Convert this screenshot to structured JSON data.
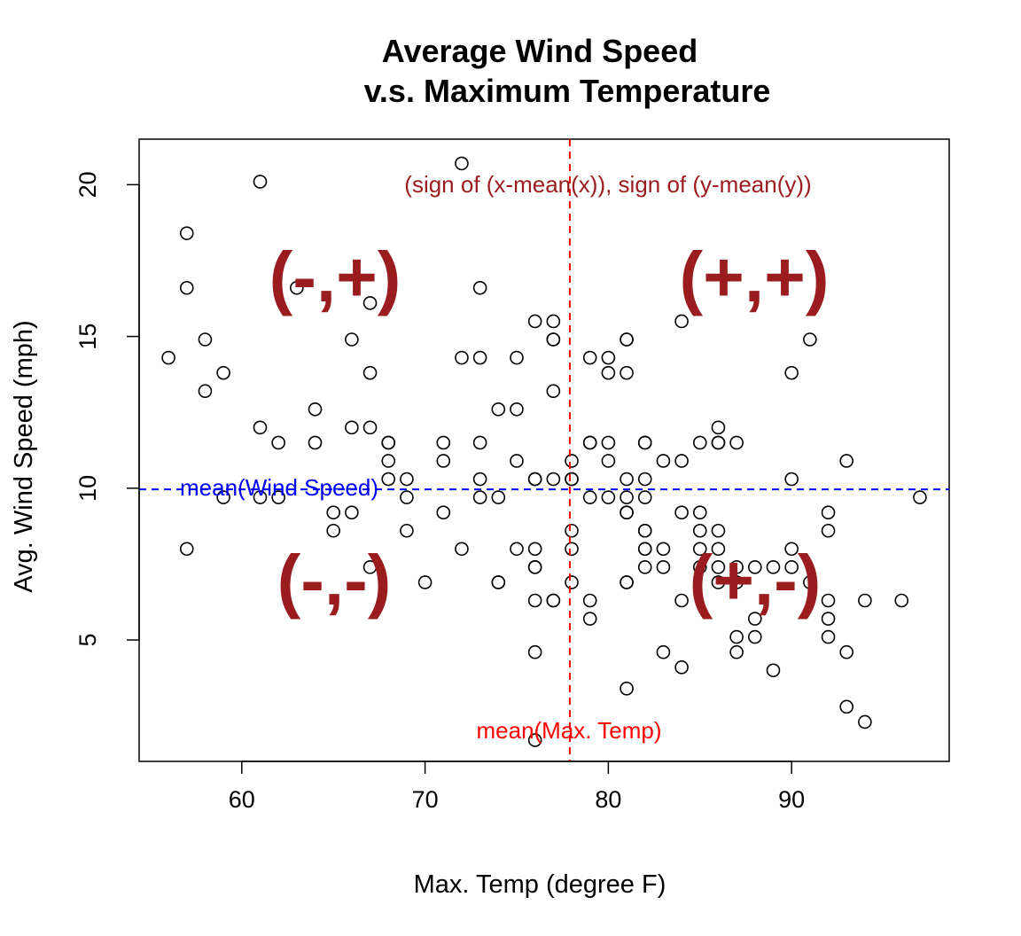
{
  "chart_data": {
    "type": "scatter",
    "title_line1": "Average Wind Speed",
    "title_line2": "v.s. Maximum Temperature",
    "xlabel": "Max. Temp (degree F)",
    "ylabel": "Avg. Wind Speed (mph)",
    "xlim": [
      54.4,
      98.6
    ],
    "ylim": [
      1.0,
      21.5
    ],
    "xticks": [
      60,
      70,
      80,
      90
    ],
    "yticks": [
      5,
      10,
      15,
      20
    ],
    "x_tick_labels": [
      "60",
      "70",
      "80",
      "90"
    ],
    "y_tick_labels": [
      "5",
      "10",
      "15",
      "20"
    ],
    "grid": false,
    "mean_x": 77.9,
    "mean_y": 9.96,
    "mean_x_label": "mean(Max. Temp)",
    "mean_y_label": "mean(Wind Speed)",
    "mean_x_color": "#ff0000",
    "mean_y_color": "#0000ff",
    "sign_note": "(sign of (x-mean(x)), sign of (y-mean(y))",
    "quadrants": {
      "top_left": "(-,+)",
      "top_right": "(+,+)",
      "bottom_left": "(-,-)",
      "bottom_right": "(+,-)"
    },
    "annotation_color": "#9b1c1f",
    "points": [
      [
        56,
        14.3
      ],
      [
        57,
        18.4
      ],
      [
        57,
        16.6
      ],
      [
        57,
        8.0
      ],
      [
        58,
        14.9
      ],
      [
        58,
        13.2
      ],
      [
        59,
        13.8
      ],
      [
        59,
        9.7
      ],
      [
        61,
        20.1
      ],
      [
        61,
        12.0
      ],
      [
        61,
        9.7
      ],
      [
        62,
        11.5
      ],
      [
        62,
        9.7
      ],
      [
        63,
        16.6
      ],
      [
        64,
        12.6
      ],
      [
        64,
        11.5
      ],
      [
        65,
        9.2
      ],
      [
        65,
        8.6
      ],
      [
        66,
        14.9
      ],
      [
        66,
        12.0
      ],
      [
        66,
        9.2
      ],
      [
        67,
        16.1
      ],
      [
        67,
        13.8
      ],
      [
        67,
        12.0
      ],
      [
        67,
        7.4
      ],
      [
        68,
        11.5
      ],
      [
        68,
        11.5
      ],
      [
        68,
        10.9
      ],
      [
        68,
        10.3
      ],
      [
        69,
        10.3
      ],
      [
        69,
        9.7
      ],
      [
        69,
        8.6
      ],
      [
        70,
        6.9
      ],
      [
        71,
        11.5
      ],
      [
        71,
        10.9
      ],
      [
        71,
        9.2
      ],
      [
        72,
        20.7
      ],
      [
        72,
        14.3
      ],
      [
        72,
        8.0
      ],
      [
        73,
        16.6
      ],
      [
        73,
        14.3
      ],
      [
        73,
        11.5
      ],
      [
        73,
        10.3
      ],
      [
        73,
        9.7
      ],
      [
        74,
        12.6
      ],
      [
        74,
        9.7
      ],
      [
        74,
        6.9
      ],
      [
        74,
        6.9
      ],
      [
        75,
        14.3
      ],
      [
        75,
        12.6
      ],
      [
        75,
        10.9
      ],
      [
        75,
        8.0
      ],
      [
        76,
        15.5
      ],
      [
        76,
        10.3
      ],
      [
        76,
        10.3
      ],
      [
        76,
        8.0
      ],
      [
        76,
        7.4
      ],
      [
        76,
        7.4
      ],
      [
        76,
        6.3
      ],
      [
        76,
        4.6
      ],
      [
        76,
        1.7
      ],
      [
        77,
        15.5
      ],
      [
        77,
        14.9
      ],
      [
        77,
        14.9
      ],
      [
        77,
        13.2
      ],
      [
        77,
        10.3
      ],
      [
        77,
        6.3
      ],
      [
        77,
        6.3
      ],
      [
        78,
        10.9
      ],
      [
        78,
        10.3
      ],
      [
        78,
        10.3
      ],
      [
        78,
        8.6
      ],
      [
        78,
        8.0
      ],
      [
        78,
        6.9
      ],
      [
        79,
        14.3
      ],
      [
        79,
        11.5
      ],
      [
        79,
        11.5
      ],
      [
        79,
        9.7
      ],
      [
        79,
        6.3
      ],
      [
        79,
        5.7
      ],
      [
        80,
        14.3
      ],
      [
        80,
        13.8
      ],
      [
        80,
        11.5
      ],
      [
        80,
        10.9
      ],
      [
        80,
        9.7
      ],
      [
        81,
        14.9
      ],
      [
        81,
        14.9
      ],
      [
        81,
        13.8
      ],
      [
        81,
        10.3
      ],
      [
        81,
        9.7
      ],
      [
        81,
        9.2
      ],
      [
        81,
        9.2
      ],
      [
        81,
        6.9
      ],
      [
        81,
        6.9
      ],
      [
        81,
        3.4
      ],
      [
        82,
        11.5
      ],
      [
        82,
        11.5
      ],
      [
        82,
        10.3
      ],
      [
        82,
        9.7
      ],
      [
        82,
        8.6
      ],
      [
        82,
        8.6
      ],
      [
        82,
        8.0
      ],
      [
        82,
        8.0
      ],
      [
        82,
        7.4
      ],
      [
        83,
        10.9
      ],
      [
        83,
        8.0
      ],
      [
        83,
        7.4
      ],
      [
        83,
        4.6
      ],
      [
        84,
        15.5
      ],
      [
        84,
        10.9
      ],
      [
        84,
        9.2
      ],
      [
        84,
        6.3
      ],
      [
        84,
        4.1
      ],
      [
        85,
        11.5
      ],
      [
        85,
        9.2
      ],
      [
        85,
        8.6
      ],
      [
        85,
        8.0
      ],
      [
        85,
        7.4
      ],
      [
        86,
        12.0
      ],
      [
        86,
        11.5
      ],
      [
        86,
        11.5
      ],
      [
        86,
        8.6
      ],
      [
        86,
        8.0
      ],
      [
        86,
        7.4
      ],
      [
        86,
        6.9
      ],
      [
        87,
        11.5
      ],
      [
        87,
        7.4
      ],
      [
        87,
        6.9
      ],
      [
        87,
        5.1
      ],
      [
        87,
        4.6
      ],
      [
        88,
        7.4
      ],
      [
        88,
        5.7
      ],
      [
        88,
        5.1
      ],
      [
        89,
        7.4
      ],
      [
        89,
        4.0
      ],
      [
        90,
        13.8
      ],
      [
        90,
        10.3
      ],
      [
        90,
        8.0
      ],
      [
        90,
        7.4
      ],
      [
        91,
        14.9
      ],
      [
        91,
        6.9
      ],
      [
        92,
        9.2
      ],
      [
        92,
        8.6
      ],
      [
        92,
        6.3
      ],
      [
        92,
        5.7
      ],
      [
        92,
        5.1
      ],
      [
        93,
        10.9
      ],
      [
        93,
        4.6
      ],
      [
        93,
        2.8
      ],
      [
        94,
        6.3
      ],
      [
        94,
        2.3
      ],
      [
        96,
        6.3
      ],
      [
        97,
        9.7
      ]
    ]
  }
}
